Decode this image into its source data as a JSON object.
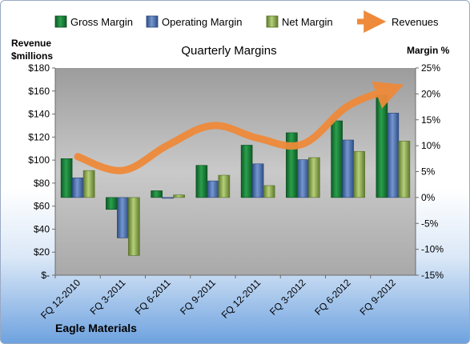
{
  "chart_data": {
    "type": "bar",
    "title": "Quarterly Margins",
    "categories": [
      "FQ 12-2010",
      "FQ 3-2011",
      "FQ 6-2011",
      "FQ 9-2011",
      "FQ 12-2011",
      "FQ 3-2012",
      "FQ 6-2012",
      "FQ 9-2012"
    ],
    "series": [
      {
        "name": "Gross Margin",
        "axis": "right",
        "color": "#1f7a3a",
        "values": [
          7.5,
          -2.3,
          1.3,
          6.2,
          10.1,
          12.5,
          14.8,
          19.7
        ]
      },
      {
        "name": "Operating Margin",
        "axis": "right",
        "color": "#4a6fae",
        "values": [
          3.8,
          -7.8,
          -0.1,
          3.2,
          6.5,
          7.3,
          11.1,
          16.3
        ]
      },
      {
        "name": "Net Margin",
        "axis": "right",
        "color": "#8fb04a",
        "values": [
          5.2,
          -11.2,
          0.5,
          4.3,
          2.3,
          7.7,
          8.9,
          10.9
        ]
      },
      {
        "name": "Revenues",
        "type": "line",
        "axis": "left",
        "color": "#ee8a3a",
        "values": [
          103,
          91,
          113,
          130,
          119,
          114,
          147,
          162
        ]
      }
    ],
    "ylabel_left": "Revenue $millions",
    "ylabel_left_lines": [
      "Revenue",
      "$millions"
    ],
    "ylim_left": [
      0,
      180
    ],
    "yticks_left": [
      "$180",
      "$160",
      "$140",
      "$120",
      "$100",
      "$80",
      "$60",
      "$40",
      "$20",
      "$-"
    ],
    "ylabel_right": "Margin %",
    "ylim_right": [
      -15,
      25
    ],
    "yticks_right": [
      "25%",
      "20%",
      "15%",
      "10%",
      "5%",
      "0%",
      "-5%",
      "-10%",
      "-15%"
    ],
    "legend_position": "top",
    "plot_background": "#bfbfbf"
  },
  "footer": {
    "company": "Eagle Materials"
  }
}
